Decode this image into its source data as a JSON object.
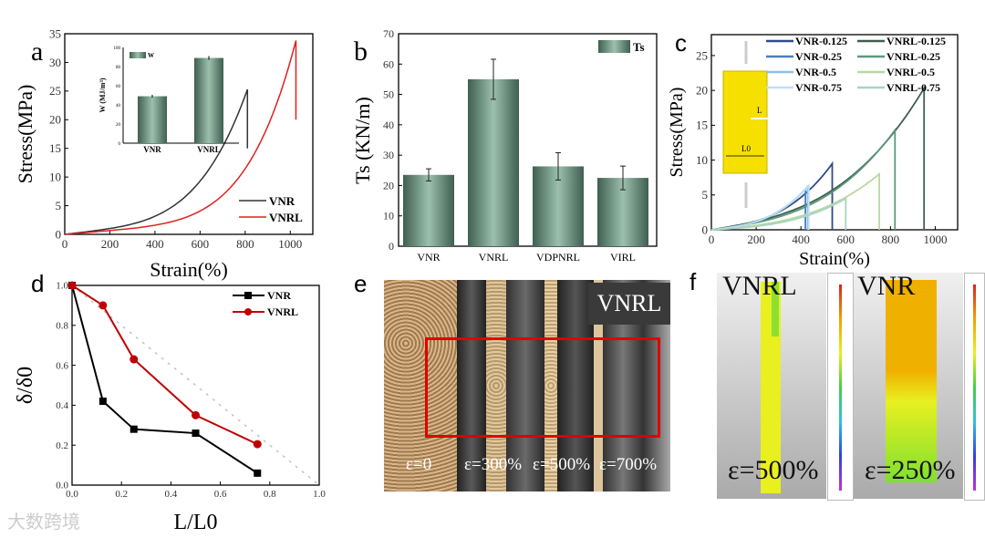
{
  "panels": {
    "a": "a",
    "b": "b",
    "c": "c",
    "d": "d",
    "e": "e",
    "f": "f"
  },
  "chart_data": [
    {
      "id": "a",
      "type": "line",
      "xlabel": "Strain(%)",
      "ylabel": "Stress(MPa)",
      "xlim": [
        0,
        1100
      ],
      "ylim": [
        0,
        35
      ],
      "xticks": [
        0,
        200,
        400,
        600,
        800,
        1000
      ],
      "yticks": [
        0,
        5,
        10,
        15,
        20,
        25,
        30,
        35
      ],
      "series": [
        {
          "name": "VNR",
          "color": "#333333",
          "break_strain": 810,
          "peak_stress": 25.3,
          "drop_to": 15
        },
        {
          "name": "VNRL",
          "color": "#e02020",
          "break_strain": 1025,
          "peak_stress": 33.8,
          "drop_to": 20
        }
      ],
      "legend_position": "bottom-right",
      "inset": {
        "type": "bar",
        "ylabel": "W (MJ/m³)",
        "ylim": [
          0,
          100
        ],
        "yticks": [
          0,
          20,
          40,
          60,
          80,
          100
        ],
        "categories": [
          "VNR",
          "VNRL"
        ],
        "values": [
          49,
          89
        ],
        "errors": [
          1.5,
          2
        ],
        "legend": "W"
      }
    },
    {
      "id": "b",
      "type": "bar",
      "ylabel": "Ts (KN/m)",
      "xlabel": "",
      "ylim": [
        0,
        70
      ],
      "yticks": [
        0,
        10,
        20,
        30,
        40,
        50,
        60,
        70
      ],
      "categories": [
        "VNR",
        "VNRL",
        "VDPNRL",
        "VIRL"
      ],
      "values": [
        23.5,
        55,
        26.3,
        22.5
      ],
      "errors": [
        2,
        6.6,
        4.5,
        3.9
      ],
      "legend": "Ts",
      "legend_position": "top-right"
    },
    {
      "id": "c",
      "type": "line",
      "xlabel": "Strain(%)",
      "ylabel": "Stress(MPa)",
      "xlim": [
        0,
        1100
      ],
      "ylim": [
        0,
        28
      ],
      "xticks": [
        0,
        200,
        400,
        600,
        800,
        1000
      ],
      "yticks": [
        0,
        5,
        10,
        15,
        20,
        25
      ],
      "series": [
        {
          "name": "VNR-0.125",
          "color": "#2f4a8a",
          "break_strain": 540,
          "peak_stress": 9.5
        },
        {
          "name": "VNRL-0.125",
          "color": "#3f5f50",
          "break_strain": 950,
          "peak_stress": 20.3
        },
        {
          "name": "VNR-0.25",
          "color": "#4a7fbf",
          "break_strain": 420,
          "peak_stress": 5.8
        },
        {
          "name": "VNRL-0.25",
          "color": "#5a9a7a",
          "break_strain": 820,
          "peak_stress": 14.3
        },
        {
          "name": "VNR-0.5",
          "color": "#8cc0e8",
          "break_strain": 430,
          "peak_stress": 6.2
        },
        {
          "name": "VNRL-0.5",
          "color": "#b8d8a0",
          "break_strain": 750,
          "peak_stress": 8
        },
        {
          "name": "VNR-0.75",
          "color": "#bfe0f5",
          "break_strain": 435,
          "peak_stress": 6.3
        },
        {
          "name": "VNRL-0.75",
          "color": "#a8d4c0",
          "break_strain": 600,
          "peak_stress": 4.5
        }
      ],
      "legend_position": "top",
      "schematic": {
        "crop_label": "L",
        "width_label": "L0"
      }
    },
    {
      "id": "d",
      "type": "line",
      "xlabel": "L/L0",
      "ylabel": "δ/δ0",
      "xlim": [
        0,
        1
      ],
      "ylim": [
        0,
        1
      ],
      "xticks": [
        0,
        0.2,
        0.4,
        0.6,
        0.8,
        1.0
      ],
      "yticks": [
        0,
        0.2,
        0.4,
        0.6,
        0.8,
        1.0
      ],
      "series": [
        {
          "name": "VNR",
          "color": "#000000",
          "marker": "square",
          "x": [
            0,
            0.125,
            0.25,
            0.5,
            0.75
          ],
          "y": [
            1.0,
            0.42,
            0.28,
            0.26,
            0.06
          ]
        },
        {
          "name": "VNRL",
          "color": "#c00000",
          "marker": "circle",
          "x": [
            0,
            0.125,
            0.25,
            0.5,
            0.75
          ],
          "y": [
            1.0,
            0.9,
            0.63,
            0.35,
            0.205
          ]
        }
      ],
      "reference_line": {
        "x": [
          0,
          1
        ],
        "y": [
          1,
          0
        ]
      },
      "legend_position": "top-right"
    }
  ],
  "photo_e": {
    "title": "VNRL",
    "strains": [
      "ε=0",
      "ε=300%",
      "ε=500%",
      "ε=700%"
    ],
    "highlight_color": "#e00000"
  },
  "photo_f": {
    "left_label": "VNRL",
    "left_strain": "ε=500%",
    "right_label": "VNR",
    "right_strain": "ε=250%"
  },
  "watermark": "大数跨境"
}
